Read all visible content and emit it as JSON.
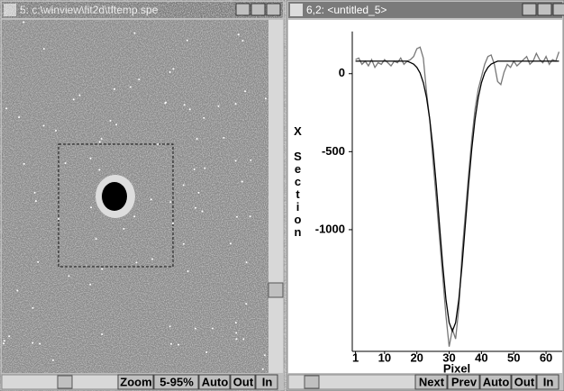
{
  "windows": [
    {
      "title": "5: c:\\winview\\fit2d\\tftemp.spe",
      "buttons": [
        "Zoom",
        "5-95%",
        "Auto",
        "Out",
        "In"
      ]
    },
    {
      "title": "6,2: <untitled_5>",
      "buttons": [
        "Next",
        "Prev",
        "Auto",
        "Out",
        "In"
      ]
    }
  ],
  "chart_data": {
    "type": "line",
    "x_label": "Pixel",
    "y_label": "X Section",
    "x": [
      1,
      2,
      3,
      4,
      5,
      6,
      7,
      8,
      9,
      10,
      11,
      12,
      13,
      14,
      15,
      16,
      17,
      18,
      19,
      20,
      21,
      22,
      23,
      24,
      25,
      26,
      27,
      28,
      29,
      30,
      31,
      32,
      33,
      34,
      35,
      36,
      37,
      38,
      39,
      40,
      41,
      42,
      43,
      44,
      45,
      46,
      47,
      48,
      49,
      50,
      51,
      52,
      53,
      54,
      55,
      56,
      57,
      58,
      59,
      60,
      61,
      62,
      63,
      64
    ],
    "series": [
      {
        "color": "#777777",
        "values": [
          90,
          100,
          60,
          80,
          50,
          90,
          40,
          70,
          60,
          90,
          70,
          50,
          80,
          70,
          100,
          60,
          80,
          90,
          110,
          160,
          170,
          100,
          -120,
          -300,
          -560,
          -800,
          -1050,
          -1300,
          -1550,
          -1750,
          -1640,
          -1700,
          -1500,
          -1150,
          -900,
          -650,
          -420,
          -230,
          -100,
          -20,
          60,
          110,
          120,
          60,
          -50,
          -70,
          10,
          60,
          40,
          80,
          50,
          70,
          90,
          110,
          60,
          80,
          130,
          90,
          70,
          110,
          60,
          90,
          80,
          140
        ]
      },
      {
        "color": "#000000",
        "values": [
          80,
          80,
          80,
          80,
          80,
          80,
          80,
          80,
          80,
          80,
          80,
          80,
          80,
          80,
          80,
          80,
          80,
          71,
          61,
          40,
          4,
          -58,
          -154,
          -294,
          -482,
          -712,
          -970,
          -1226,
          -1446,
          -1596,
          -1650,
          -1596,
          -1446,
          -1226,
          -970,
          -712,
          -482,
          -294,
          -154,
          -58,
          4,
          40,
          61,
          71,
          80,
          80,
          80,
          80,
          80,
          80,
          80,
          80,
          80,
          80,
          80,
          80,
          80,
          80,
          80,
          80,
          80,
          80,
          80,
          80
        ]
      }
    ],
    "xlim": [
      0,
      65
    ],
    "ylim": [
      -1780,
      270
    ],
    "xticks": [
      1,
      10,
      20,
      30,
      40,
      50,
      60
    ],
    "yticks": [
      0,
      -500,
      -1000
    ]
  }
}
